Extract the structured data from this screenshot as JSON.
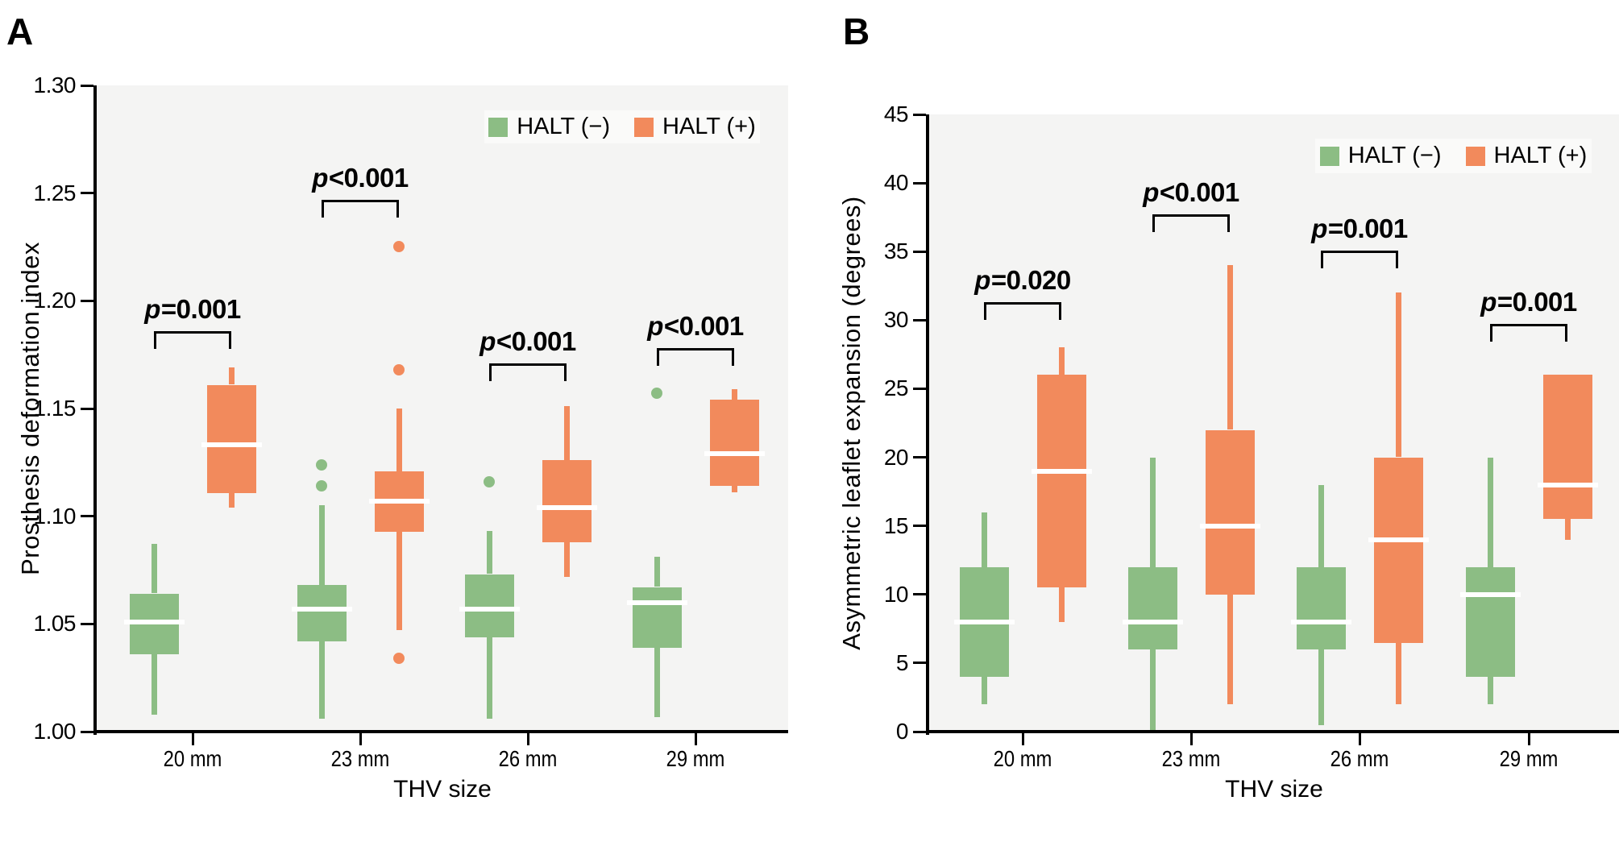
{
  "colors": {
    "halt_negative": "#8CBD84",
    "halt_positive": "#F28A5C",
    "plot_background": "#F4F4F3",
    "legend_background": "#FAFAF9",
    "axis": "#000000",
    "median_line": "#FFFFFF",
    "text": "#000000"
  },
  "chart_data": [
    {
      "panel_label": "A",
      "type": "boxplot",
      "title": "",
      "xlabel": "THV size",
      "ylabel": "Prosthesis deformation index",
      "ylim": [
        1.0,
        1.3
      ],
      "yticks": [
        1.0,
        1.05,
        1.1,
        1.15,
        1.2,
        1.25,
        1.3
      ],
      "ytick_labels": [
        "1.00",
        "1.05",
        "1.10",
        "1.15",
        "1.20",
        "1.25",
        "1.30"
      ],
      "categories": [
        "20 mm",
        "23 mm",
        "26 mm",
        "29 mm"
      ],
      "grid": false,
      "legend_position": "top-right",
      "legend": [
        {
          "name": "HALT (−)",
          "color": "#8CBD84"
        },
        {
          "name": "HALT (+)",
          "color": "#F28A5C"
        }
      ],
      "series": [
        {
          "name": "HALT (−)",
          "color": "#8CBD84",
          "boxes": [
            {
              "min": 1.008,
              "q1": 1.036,
              "median": 1.051,
              "q3": 1.064,
              "max": 1.087,
              "outliers": []
            },
            {
              "min": 1.006,
              "q1": 1.042,
              "median": 1.057,
              "q3": 1.068,
              "max": 1.105,
              "outliers": [
                1.114,
                1.124
              ]
            },
            {
              "min": 1.006,
              "q1": 1.044,
              "median": 1.057,
              "q3": 1.073,
              "max": 1.093,
              "outliers": [
                1.116
              ]
            },
            {
              "min": 1.007,
              "q1": 1.039,
              "median": 1.06,
              "q3": 1.067,
              "max": 1.081,
              "outliers": [
                1.157
              ]
            }
          ]
        },
        {
          "name": "HALT (+)",
          "color": "#F28A5C",
          "boxes": [
            {
              "min": 1.104,
              "q1": 1.111,
              "median": 1.133,
              "q3": 1.161,
              "max": 1.169,
              "outliers": []
            },
            {
              "min": 1.047,
              "q1": 1.093,
              "median": 1.107,
              "q3": 1.121,
              "max": 1.15,
              "outliers": [
                1.034,
                1.168,
                1.225
              ]
            },
            {
              "min": 1.072,
              "q1": 1.088,
              "median": 1.104,
              "q3": 1.126,
              "max": 1.151,
              "outliers": []
            },
            {
              "min": 1.111,
              "q1": 1.114,
              "median": 1.129,
              "q3": 1.154,
              "max": 1.159,
              "outliers": []
            }
          ]
        }
      ],
      "annotations": [
        {
          "category": "20 mm",
          "text": "p=0.001",
          "bracket_y": 1.186
        },
        {
          "category": "23 mm",
          "text": "p<0.001",
          "bracket_y": 1.247
        },
        {
          "category": "26 mm",
          "text": "p<0.001",
          "bracket_y": 1.171
        },
        {
          "category": "29 mm",
          "text": "p<0.001",
          "bracket_y": 1.178
        }
      ]
    },
    {
      "panel_label": "B",
      "type": "boxplot",
      "title": "",
      "xlabel": "THV size",
      "ylabel": "Asymmetric leaflet expansion (degrees)",
      "ylim": [
        0,
        45
      ],
      "yticks": [
        0,
        5,
        10,
        15,
        20,
        25,
        30,
        35,
        40,
        45
      ],
      "ytick_labels": [
        "0",
        "5",
        "10",
        "15",
        "20",
        "25",
        "30",
        "35",
        "40",
        "45"
      ],
      "categories": [
        "20 mm",
        "23 mm",
        "26 mm",
        "29 mm"
      ],
      "grid": false,
      "legend_position": "top-right",
      "legend": [
        {
          "name": "HALT (−)",
          "color": "#8CBD84"
        },
        {
          "name": "HALT (+)",
          "color": "#F28A5C"
        }
      ],
      "series": [
        {
          "name": "HALT (−)",
          "color": "#8CBD84",
          "boxes": [
            {
              "min": 2,
              "q1": 4,
              "median": 8,
              "q3": 12,
              "max": 16,
              "outliers": []
            },
            {
              "min": 0,
              "q1": 6,
              "median": 8,
              "q3": 12,
              "max": 20,
              "outliers": []
            },
            {
              "min": 0.5,
              "q1": 6,
              "median": 8,
              "q3": 12,
              "max": 18,
              "outliers": []
            },
            {
              "min": 2,
              "q1": 4,
              "median": 10,
              "q3": 12,
              "max": 20,
              "outliers": []
            }
          ]
        },
        {
          "name": "HALT (+)",
          "color": "#F28A5C",
          "boxes": [
            {
              "min": 8,
              "q1": 10.5,
              "median": 19,
              "q3": 26,
              "max": 28,
              "outliers": []
            },
            {
              "min": 2,
              "q1": 10,
              "median": 15,
              "q3": 22,
              "max": 34,
              "outliers": []
            },
            {
              "min": 2,
              "q1": 6.5,
              "median": 14,
              "q3": 20,
              "max": 32,
              "outliers": []
            },
            {
              "min": 14,
              "q1": 15.5,
              "median": 18,
              "q3": 26,
              "max": 26,
              "outliers": []
            }
          ]
        }
      ],
      "annotations": [
        {
          "category": "20 mm",
          "text": "p=0.020",
          "bracket_y": 31.3
        },
        {
          "category": "23 mm",
          "text": "p<0.001",
          "bracket_y": 37.7
        },
        {
          "category": "26 mm",
          "text": "p=0.001",
          "bracket_y": 35.1
        },
        {
          "category": "29 mm",
          "text": "p=0.001",
          "bracket_y": 29.7
        }
      ]
    }
  ]
}
